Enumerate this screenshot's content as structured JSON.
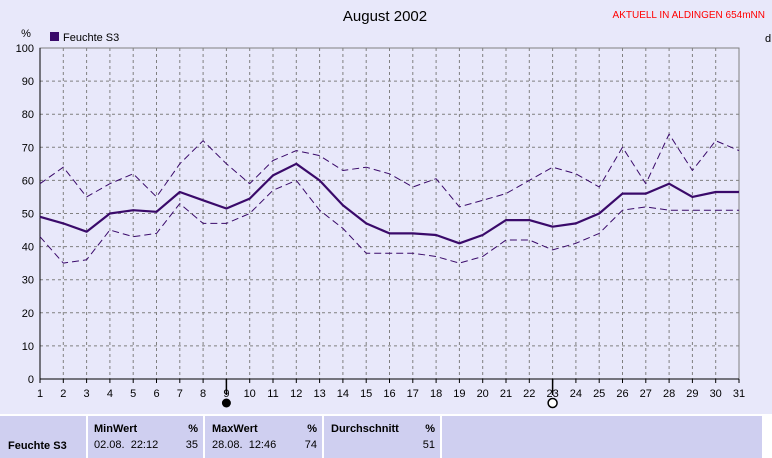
{
  "chart_data": {
    "type": "line",
    "title": "August 2002",
    "subtitle": "AKTUELL IN ALDINGEN 654mNN",
    "ylabel": "%",
    "right_axis_label": "d",
    "ylim": [
      0,
      100
    ],
    "yticks": [
      0,
      10,
      20,
      30,
      40,
      50,
      60,
      70,
      80,
      90,
      100
    ],
    "xlim": [
      1,
      31
    ],
    "x": [
      1,
      2,
      3,
      4,
      5,
      6,
      7,
      8,
      9,
      10,
      11,
      12,
      13,
      14,
      15,
      16,
      17,
      18,
      19,
      20,
      21,
      22,
      23,
      24,
      25,
      26,
      27,
      28,
      29,
      30,
      31
    ],
    "grid": true,
    "legend": "top-left",
    "series": [
      {
        "name": "Feuchte S3",
        "role": "mean",
        "color": "#3a0a6a",
        "values": [
          49,
          47,
          44.5,
          50,
          51,
          50.5,
          56.5,
          54,
          51.5,
          54.5,
          61.5,
          65,
          60,
          52.5,
          47,
          44,
          44,
          43.5,
          41,
          43.5,
          48,
          48,
          46,
          47,
          50,
          56,
          56,
          59,
          55,
          56.5,
          56.5
        ]
      },
      {
        "name": "",
        "role": "max",
        "color": "#3a0a6a",
        "values": [
          59,
          64,
          55,
          59,
          62,
          55,
          65,
          72,
          65,
          59,
          66,
          69,
          67.5,
          63,
          64,
          62,
          58,
          60.5,
          52,
          54,
          56,
          60,
          64,
          62,
          58,
          70,
          59,
          74,
          63,
          72,
          69
        ]
      },
      {
        "name": "",
        "role": "min",
        "color": "#3a0a6a",
        "values": [
          43,
          35,
          36,
          45,
          43,
          44,
          53,
          47,
          47,
          50,
          57,
          60,
          51,
          45.5,
          38,
          38,
          38,
          37,
          35,
          37,
          42,
          42,
          39,
          41,
          44,
          51,
          52,
          51,
          51,
          51,
          51
        ]
      }
    ],
    "markers": [
      {
        "x": 9,
        "symbol": "filled-circle"
      },
      {
        "x": 23,
        "symbol": "open-circle"
      }
    ]
  },
  "stats_table": {
    "row_label": "Feuchte S3",
    "min": {
      "header": "MinWert",
      "unit": "%",
      "datetime": "02.08.  22:12",
      "value": "35"
    },
    "max": {
      "header": "MaxWert",
      "unit": "%",
      "datetime": "28.08.  12:46",
      "value": "74"
    },
    "avg": {
      "header": "Durchschnitt",
      "unit": "%",
      "value": "51"
    }
  },
  "colors": {
    "background": "#e8e8fa",
    "series": "#3a0a6a",
    "grid": "#808080",
    "subtitle": "#ff0000",
    "stats_cell": "#cfcff0"
  }
}
